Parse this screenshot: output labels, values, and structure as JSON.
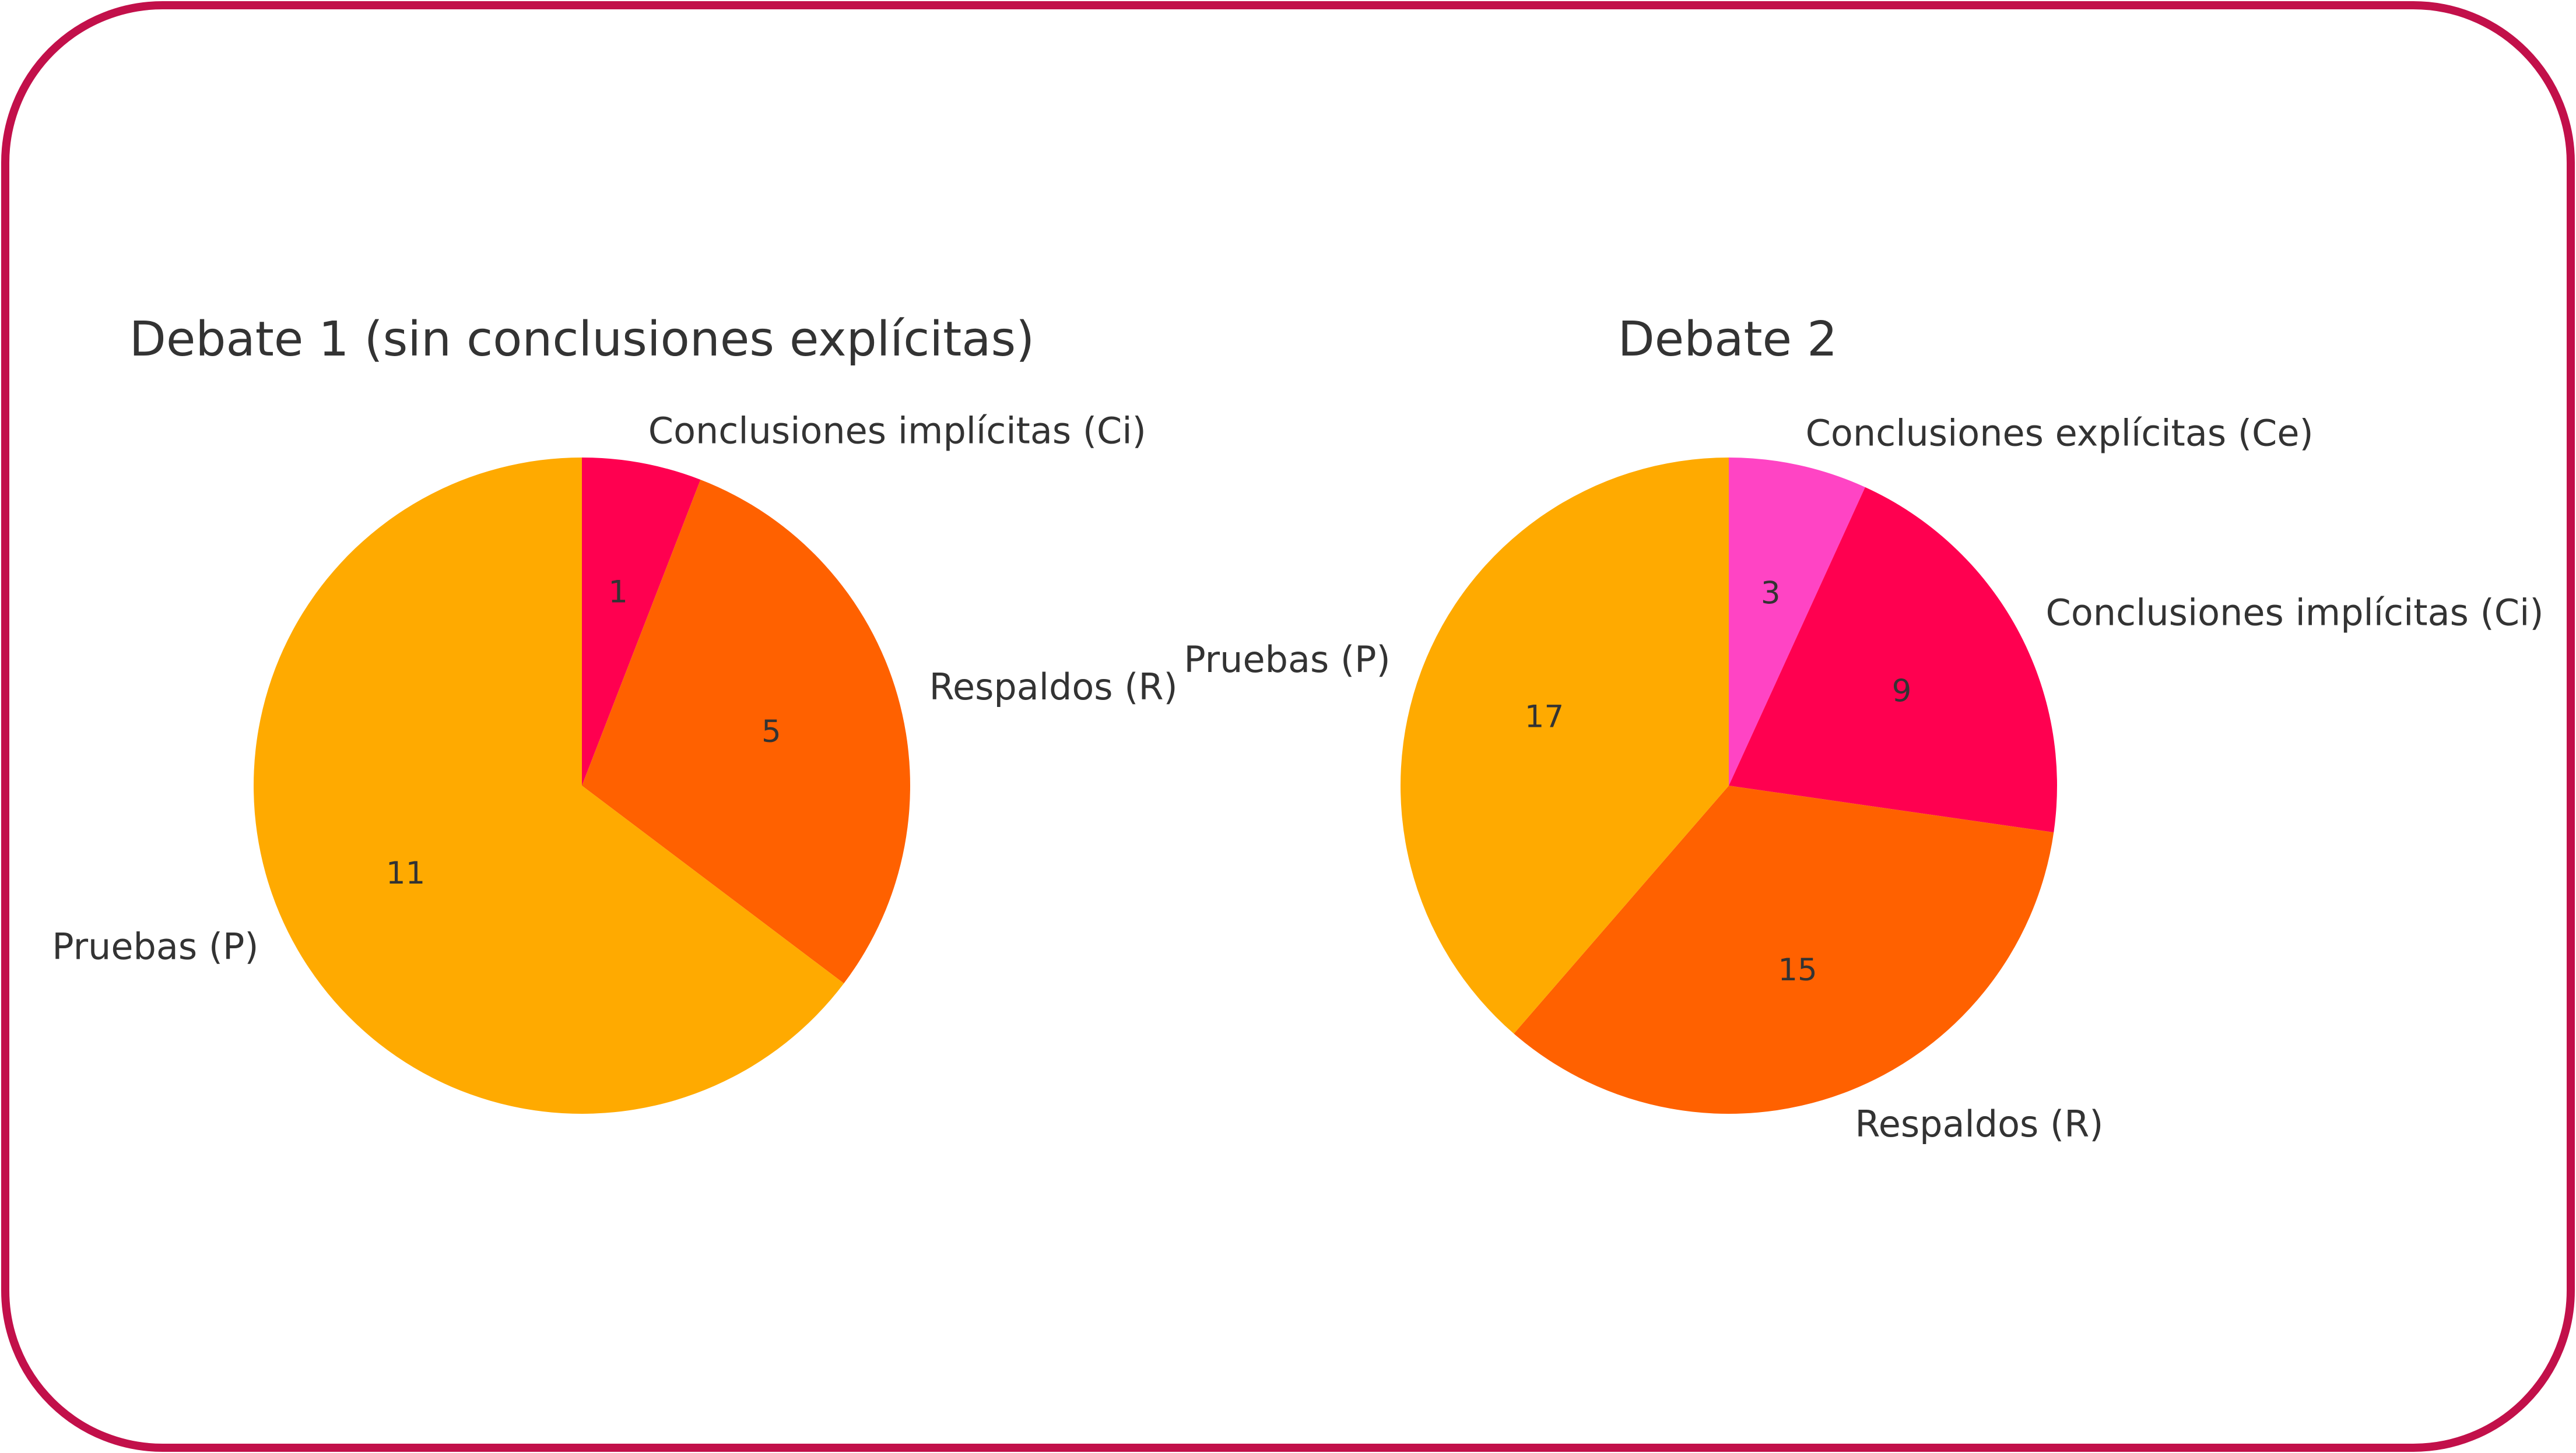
{
  "frame": {
    "border_color": "#C2104A"
  },
  "chart_data": [
    {
      "type": "pie",
      "title": "Debate 1 (sin conclusiones explícitas)",
      "start_angle_deg": 90,
      "direction": "clockwise",
      "slices": [
        {
          "label": "Conclusiones implícitas (Ci)",
          "value": 1,
          "color": "#FF0050"
        },
        {
          "label": "Respaldos (R)",
          "value": 5,
          "color": "#FF6100"
        },
        {
          "label": "Pruebas (P)",
          "value": 11,
          "color": "#FFAA00"
        }
      ]
    },
    {
      "type": "pie",
      "title": "Debate 2",
      "start_angle_deg": 90,
      "direction": "clockwise",
      "slices": [
        {
          "label": "Conclusiones explícitas (Ce)",
          "value": 3,
          "color": "#FF44C4"
        },
        {
          "label": "Conclusiones implícitas (Ci)",
          "value": 9,
          "color": "#FF0050"
        },
        {
          "label": "Respaldos (R)",
          "value": 15,
          "color": "#FF6100"
        },
        {
          "label": "Pruebas (P)",
          "value": 17,
          "color": "#FFAA00"
        }
      ]
    }
  ]
}
